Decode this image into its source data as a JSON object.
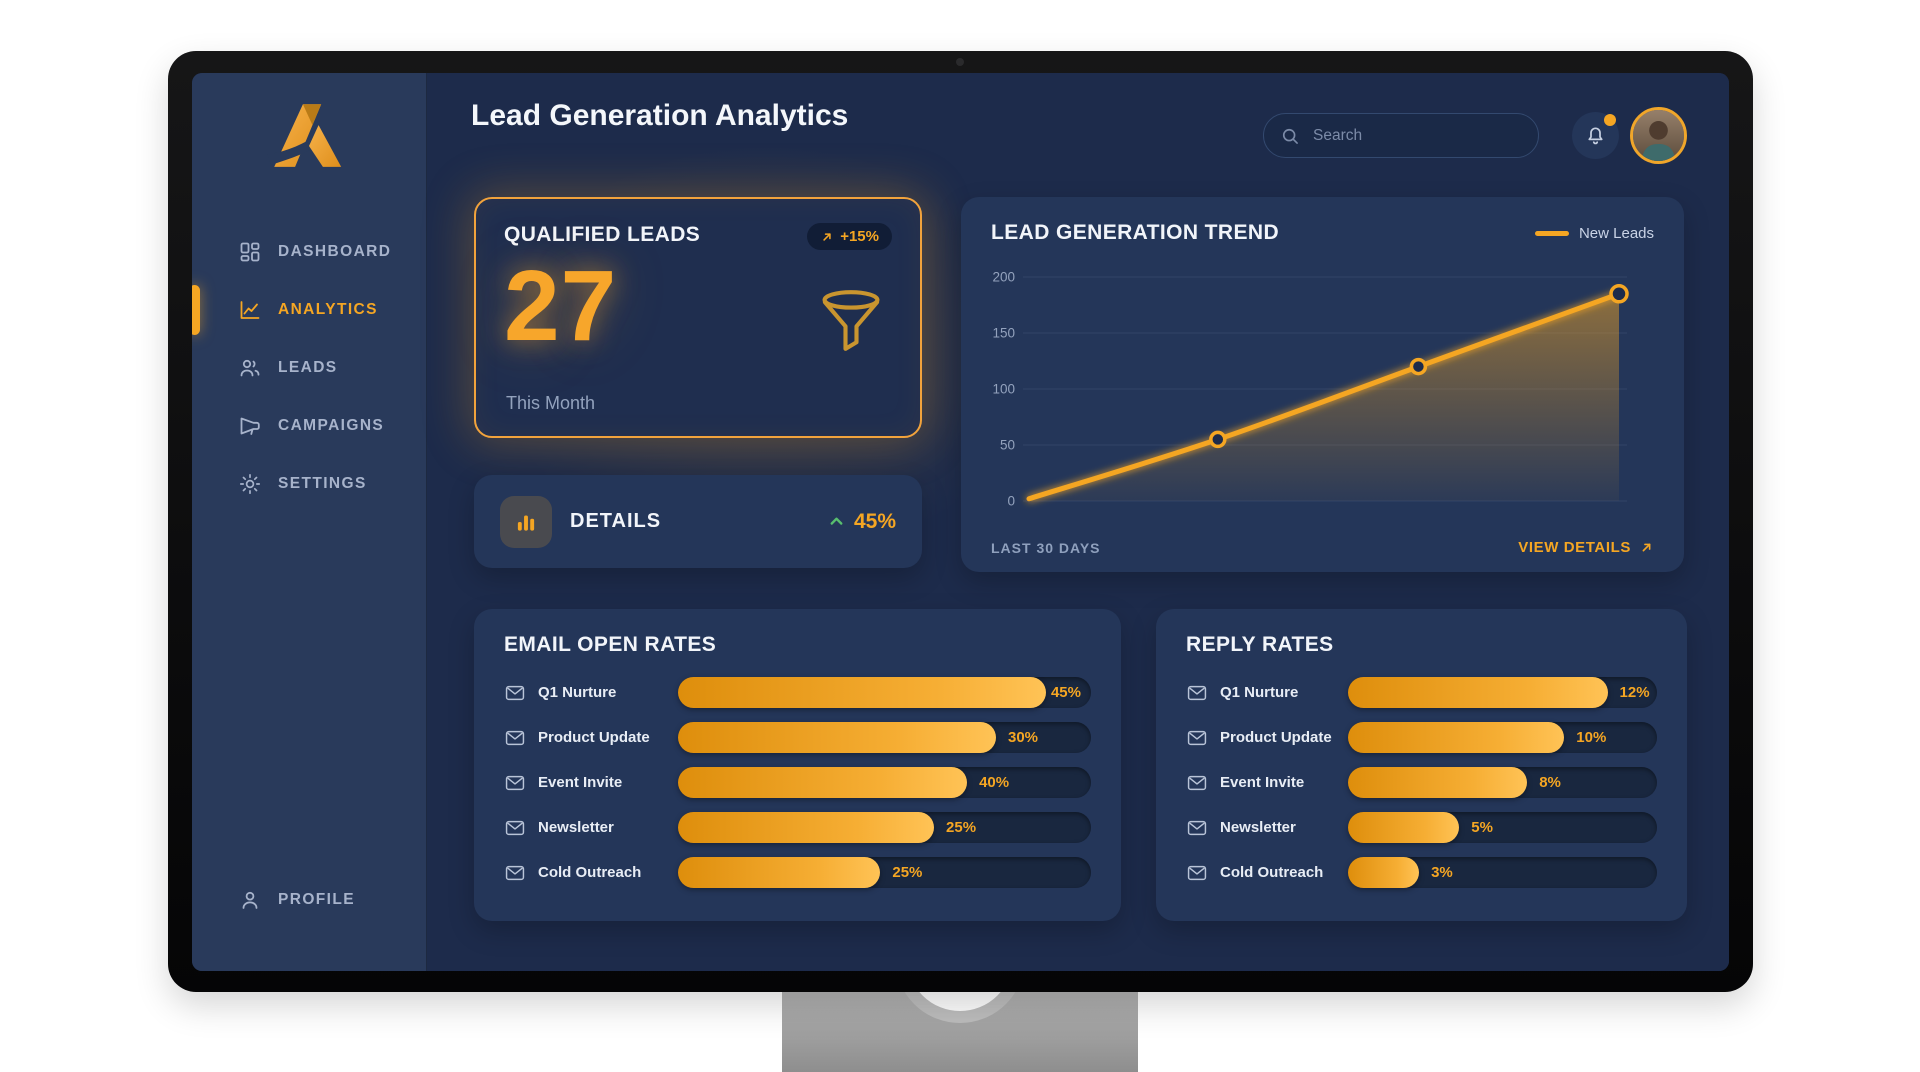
{
  "app_title": "Lead Generation Analytics",
  "header": {
    "search_placeholder": "Search",
    "notification_badge": true
  },
  "sidebar": {
    "items": [
      {
        "label": "DASHBOARD",
        "icon": "dashboard-icon",
        "active": false
      },
      {
        "label": "ANALYTICS",
        "icon": "analytics-icon",
        "active": true
      },
      {
        "label": "LEADS",
        "icon": "leads-icon",
        "active": false
      },
      {
        "label": "CAMPAIGNS",
        "icon": "campaigns-icon",
        "active": false
      },
      {
        "label": "SETTINGS",
        "icon": "settings-icon",
        "active": false
      }
    ],
    "profile": {
      "label": "PROFILE",
      "icon": "profile-icon"
    }
  },
  "stats": {
    "qualified_leads": {
      "title": "QUALIFIED LEADS",
      "value": "27",
      "sublabel": "This Month",
      "change": "+15%"
    },
    "details": {
      "label": "DETAILS",
      "value": "45%"
    }
  },
  "trend": {
    "legend": "New Leads",
    "footer_left": "LAST 30 DAYS",
    "footer_right": "VIEW DETAILS"
  },
  "chart_data": [
    {
      "id": "lead_generation_trend",
      "type": "area",
      "title": "LEAD GENERATION TREND",
      "xlabel": "LAST 30 DAYS",
      "legend": [
        "New Leads"
      ],
      "legend_position": "top-right",
      "grid": true,
      "ylim": [
        0,
        200
      ],
      "yticks": [
        0,
        50,
        100,
        150,
        200
      ],
      "series": [
        {
          "name": "New Leads",
          "x_fraction": [
            0,
            0.32,
            0.66,
            1
          ],
          "values": [
            2,
            55,
            120,
            185
          ]
        }
      ],
      "line_color": "#F5A623"
    },
    {
      "id": "email_open_rates",
      "type": "bar",
      "title": "EMAIL OPEN RATES",
      "categories": [
        "Q1 Nurture",
        "Product Update",
        "Event Invite",
        "Newsletter",
        "Cold Outreach"
      ],
      "values": [
        45,
        30,
        40,
        25,
        25
      ],
      "unit": "%",
      "bar_fill_fractions": [
        0.89,
        0.77,
        0.7,
        0.62,
        0.49
      ],
      "bar_color": "#F5A623"
    },
    {
      "id": "reply_rates",
      "type": "bar",
      "title": "REPLY RATES",
      "categories": [
        "Q1 Nurture",
        "Product Update",
        "Event Invite",
        "Newsletter",
        "Cold Outreach"
      ],
      "values": [
        12,
        10,
        8,
        5,
        3
      ],
      "unit": "%",
      "bar_fill_fractions": [
        0.84,
        0.7,
        0.58,
        0.36,
        0.23
      ],
      "bar_color": "#F5A623"
    }
  ],
  "colors": {
    "accent": "#F5A623",
    "accent_dark": "#DE8E0C",
    "positive_green": "#58BE6E",
    "screen_bg": "#1D2B4B",
    "sidebar_bg": "#293A5B",
    "card_bg": "#243659",
    "track_bg": "#19273F"
  }
}
